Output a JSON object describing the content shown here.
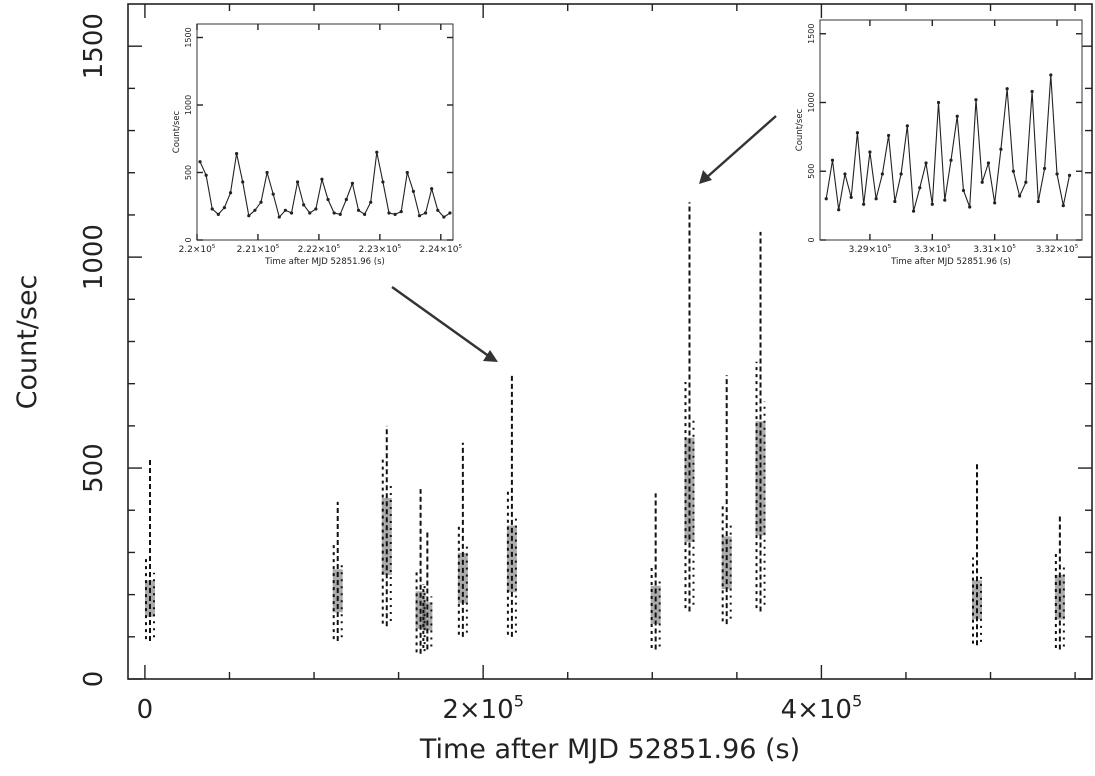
{
  "chart_data": [
    {
      "type": "line",
      "role": "main",
      "xlabel": "Time after MJD 52851.96 (s)",
      "ylabel": "Count/sec",
      "xlim": [
        -10000,
        560000
      ],
      "ylim": [
        0,
        1600
      ],
      "x_ticks": [
        0,
        200000,
        400000
      ],
      "x_tick_labels": [
        {
          "base": "0",
          "exp": ""
        },
        {
          "base": "2×10",
          "exp": "5"
        },
        {
          "base": "4×10",
          "exp": "5"
        }
      ],
      "y_ticks": [
        0,
        500,
        1000,
        1500
      ],
      "y_tick_labels": [
        "0",
        "500",
        "1000",
        "1500"
      ],
      "series": [
        {
          "segments": [
            {
              "x": 3000,
              "min": 90,
              "max": 520,
              "mean": 180
            },
            {
              "x": 114000,
              "min": 90,
              "max": 420,
              "mean": 200
            },
            {
              "x": 143000,
              "min": 125,
              "max": 600,
              "mean": 330
            },
            {
              "x": 163000,
              "min": 60,
              "max": 450,
              "mean": 160
            },
            {
              "x": 167000,
              "min": 70,
              "max": 350,
              "mean": 140
            },
            {
              "x": 188000,
              "min": 100,
              "max": 560,
              "mean": 230
            },
            {
              "x": 217000,
              "min": 100,
              "max": 720,
              "mean": 280
            },
            {
              "x": 302000,
              "min": 70,
              "max": 440,
              "mean": 170
            },
            {
              "x": 322000,
              "min": 160,
              "max": 1130,
              "mean": 440
            },
            {
              "x": 344000,
              "min": 130,
              "max": 720,
              "mean": 260
            },
            {
              "x": 364000,
              "min": 160,
              "max": 1060,
              "mean": 470
            },
            {
              "x": 492000,
              "min": 80,
              "max": 510,
              "mean": 180
            },
            {
              "x": 541000,
              "min": 70,
              "max": 390,
              "mean": 190
            }
          ]
        }
      ]
    },
    {
      "type": "line",
      "role": "inset-left",
      "xlabel": "Time after MJD 52851.96 (s)",
      "ylabel": "Count/sec",
      "xlim": [
        220000,
        224200
      ],
      "ylim": [
        0,
        1600
      ],
      "x_ticks": [
        220000,
        221000,
        222000,
        223000,
        224000
      ],
      "x_tick_labels": [
        {
          "base": "2.2×10",
          "exp": "5"
        },
        {
          "base": "2.21×10",
          "exp": "5"
        },
        {
          "base": "2.22×10",
          "exp": "5"
        },
        {
          "base": "2.23×10",
          "exp": "5"
        },
        {
          "base": "2.24×10",
          "exp": "5"
        }
      ],
      "y_ticks": [
        0,
        500,
        1000,
        1500
      ],
      "y_tick_labels": [
        "0",
        "500",
        "1000",
        "1500"
      ],
      "series": [
        {
          "x": [
            220050,
            220150,
            220250,
            220350,
            220450,
            220550,
            220650,
            220750,
            220850,
            220950,
            221050,
            221150,
            221250,
            221350,
            221450,
            221550,
            221650,
            221750,
            221850,
            221950,
            222050,
            222150,
            222250,
            222350,
            222450,
            222550,
            222650,
            222750,
            222850,
            222950,
            223050,
            223150,
            223250,
            223350,
            223450,
            223550,
            223650,
            223750,
            223850,
            223950,
            224050,
            224150
          ],
          "values": [
            580,
            480,
            230,
            190,
            240,
            350,
            640,
            430,
            180,
            220,
            280,
            500,
            340,
            170,
            220,
            200,
            430,
            260,
            200,
            230,
            450,
            300,
            200,
            190,
            300,
            420,
            220,
            190,
            280,
            650,
            430,
            200,
            190,
            210,
            500,
            360,
            180,
            200,
            380,
            220,
            170,
            200
          ]
        }
      ]
    },
    {
      "type": "line",
      "role": "inset-right",
      "xlabel": "Time after MJD 52851.96 (s)",
      "ylabel": "Count/sec",
      "xlim": [
        328200,
        332400
      ],
      "ylim": [
        0,
        1600
      ],
      "x_ticks": [
        329000,
        330000,
        331000,
        332000
      ],
      "x_tick_labels": [
        {
          "base": "3.29×10",
          "exp": "5"
        },
        {
          "base": "3.3×10",
          "exp": "5"
        },
        {
          "base": "3.31×10",
          "exp": "5"
        },
        {
          "base": "3.32×10",
          "exp": "5"
        }
      ],
      "y_ticks": [
        0,
        500,
        1000,
        1500
      ],
      "y_tick_labels": [
        "0",
        "500",
        "1000",
        "1500"
      ],
      "series": [
        {
          "x": [
            328300,
            328400,
            328500,
            328600,
            328700,
            328800,
            328900,
            329000,
            329100,
            329200,
            329300,
            329400,
            329500,
            329600,
            329700,
            329800,
            329900,
            330000,
            330100,
            330200,
            330300,
            330400,
            330500,
            330600,
            330700,
            330800,
            330900,
            331000,
            331100,
            331200,
            331300,
            331400,
            331500,
            331600,
            331700,
            331800,
            331900,
            332000,
            332100,
            332200
          ],
          "values": [
            300,
            580,
            220,
            480,
            310,
            780,
            260,
            640,
            300,
            480,
            760,
            280,
            480,
            830,
            210,
            380,
            560,
            260,
            1000,
            290,
            580,
            900,
            360,
            240,
            1020,
            420,
            560,
            270,
            660,
            1100,
            500,
            320,
            420,
            1080,
            280,
            520,
            1200,
            480,
            250,
            470
          ]
        }
      ]
    }
  ]
}
